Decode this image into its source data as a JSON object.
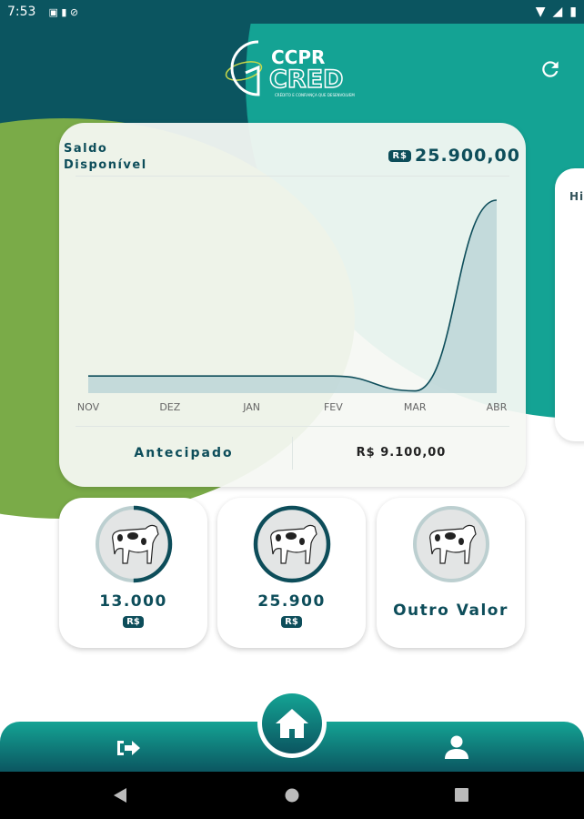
{
  "status_bar": {
    "time": "7:53"
  },
  "header": {
    "logo_text": "CCPR CRED",
    "logo_tagline": "CRÉDITO E CONFIANÇA QUE DESENVOLVEM"
  },
  "balance_card": {
    "title_line1": "Saldo",
    "title_line2": "Disponível",
    "currency": "R$",
    "amount": "25.900,00",
    "footer_label": "Antecipado",
    "footer_value": "R$ 9.100,00"
  },
  "side_card": {
    "title": "Hi"
  },
  "chart_data": {
    "type": "area",
    "categories": [
      "NOV",
      "DEZ",
      "JAN",
      "FEV",
      "MAR",
      "ABR"
    ],
    "values": [
      2300,
      2300,
      2300,
      2300,
      300,
      25900
    ],
    "ylim": [
      0,
      25900
    ],
    "grid": false,
    "colors": {
      "line": "#0d4d5a",
      "fill": "#b9d3d6"
    }
  },
  "options": [
    {
      "value": "13.000",
      "currency": "R$",
      "progress": 0.5
    },
    {
      "value": "25.900",
      "currency": "R$",
      "progress": 1.0
    },
    {
      "label": "Outro Valor",
      "progress": 0
    }
  ],
  "nav": {
    "items": [
      "logout-icon",
      "home-icon",
      "user-icon"
    ]
  },
  "colors": {
    "dark_teal": "#0b5560",
    "teal": "#14a394",
    "green": "#7aab48",
    "text": "#0d4d5a"
  }
}
